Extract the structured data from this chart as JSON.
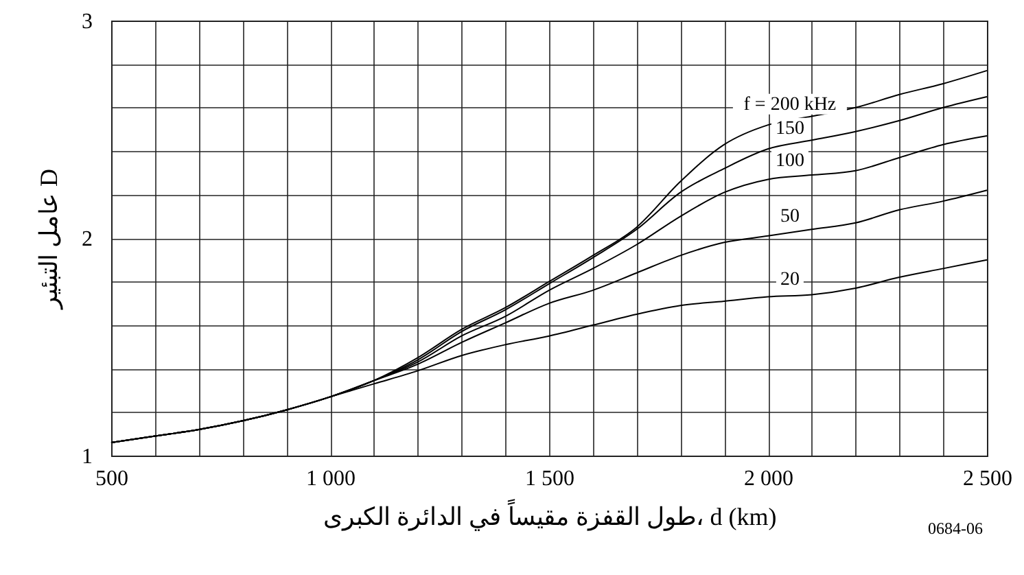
{
  "chart_data": {
    "type": "line",
    "xlabel": "طول القفزة مقيساً في الدائرة الكبرى، d (km)",
    "ylabel": "عامل التبئير D",
    "annotations": [
      "0684-06"
    ],
    "x": [
      500,
      600,
      700,
      800,
      900,
      1000,
      1100,
      1200,
      1300,
      1400,
      1500,
      1600,
      1700,
      1800,
      1900,
      2000,
      2100,
      2200,
      2300,
      2400,
      2500
    ],
    "series": [
      {
        "name": "f = 200 kHz",
        "color": "#000000",
        "values": [
          1.06,
          1.09,
          1.12,
          1.16,
          1.21,
          1.27,
          1.345,
          1.45,
          1.58,
          1.68,
          1.8,
          1.92,
          2.05,
          2.26,
          2.43,
          2.52,
          2.56,
          2.6,
          2.66,
          2.71,
          2.77
        ]
      },
      {
        "name": "150",
        "color": "#000000",
        "values": [
          1.06,
          1.09,
          1.12,
          1.16,
          1.21,
          1.27,
          1.345,
          1.44,
          1.57,
          1.67,
          1.79,
          1.91,
          2.04,
          2.21,
          2.32,
          2.41,
          2.45,
          2.49,
          2.54,
          2.6,
          2.65
        ]
      },
      {
        "name": "100",
        "color": "#000000",
        "values": [
          1.06,
          1.09,
          1.12,
          1.16,
          1.21,
          1.27,
          1.345,
          1.43,
          1.55,
          1.64,
          1.76,
          1.86,
          1.97,
          2.1,
          2.21,
          2.27,
          2.29,
          2.31,
          2.37,
          2.43,
          2.47
        ]
      },
      {
        "name": "50",
        "color": "#000000",
        "values": [
          1.06,
          1.09,
          1.12,
          1.16,
          1.21,
          1.27,
          1.345,
          1.42,
          1.52,
          1.61,
          1.7,
          1.76,
          1.84,
          1.92,
          1.98,
          2.01,
          2.04,
          2.07,
          2.13,
          2.17,
          2.22
        ]
      },
      {
        "name": "20",
        "color": "#000000",
        "values": [
          1.06,
          1.09,
          1.12,
          1.16,
          1.21,
          1.27,
          1.33,
          1.39,
          1.46,
          1.51,
          1.55,
          1.6,
          1.65,
          1.69,
          1.71,
          1.73,
          1.74,
          1.77,
          1.82,
          1.86,
          1.9
        ]
      }
    ],
    "xlim": [
      500,
      2500
    ],
    "xticks": [
      {
        "value": 500,
        "label": "500"
      },
      {
        "value": 600,
        "label": null
      },
      {
        "value": 700,
        "label": null
      },
      {
        "value": 800,
        "label": null
      },
      {
        "value": 900,
        "label": null
      },
      {
        "value": 1000,
        "label": "1 000"
      },
      {
        "value": 1100,
        "label": null
      },
      {
        "value": 1200,
        "label": null
      },
      {
        "value": 1300,
        "label": null
      },
      {
        "value": 1400,
        "label": null
      },
      {
        "value": 1500,
        "label": "1 500"
      },
      {
        "value": 1600,
        "label": null
      },
      {
        "value": 1700,
        "label": null
      },
      {
        "value": 1800,
        "label": null
      },
      {
        "value": 1900,
        "label": null
      },
      {
        "value": 2000,
        "label": "2 000"
      },
      {
        "value": 2100,
        "label": null
      },
      {
        "value": 2200,
        "label": null
      },
      {
        "value": 2300,
        "label": null
      },
      {
        "value": 2400,
        "label": null
      },
      {
        "value": 2500,
        "label": "2 500"
      }
    ],
    "ylim": [
      1,
      3
    ],
    "yticks": [
      1,
      {
        "value": 1.2,
        "label": null
      },
      {
        "value": 1.4,
        "label": null
      },
      {
        "value": 1.6,
        "label": null
      },
      {
        "value": 1.8,
        "label": null
      },
      2,
      {
        "value": 2.2,
        "label": null
      },
      {
        "value": 2.4,
        "label": null
      },
      {
        "value": 2.6,
        "label": null
      },
      {
        "value": 2.8,
        "label": null
      },
      3
    ],
    "grid": true,
    "marker": "none",
    "line_style": "solid",
    "data_labels": false
  }
}
